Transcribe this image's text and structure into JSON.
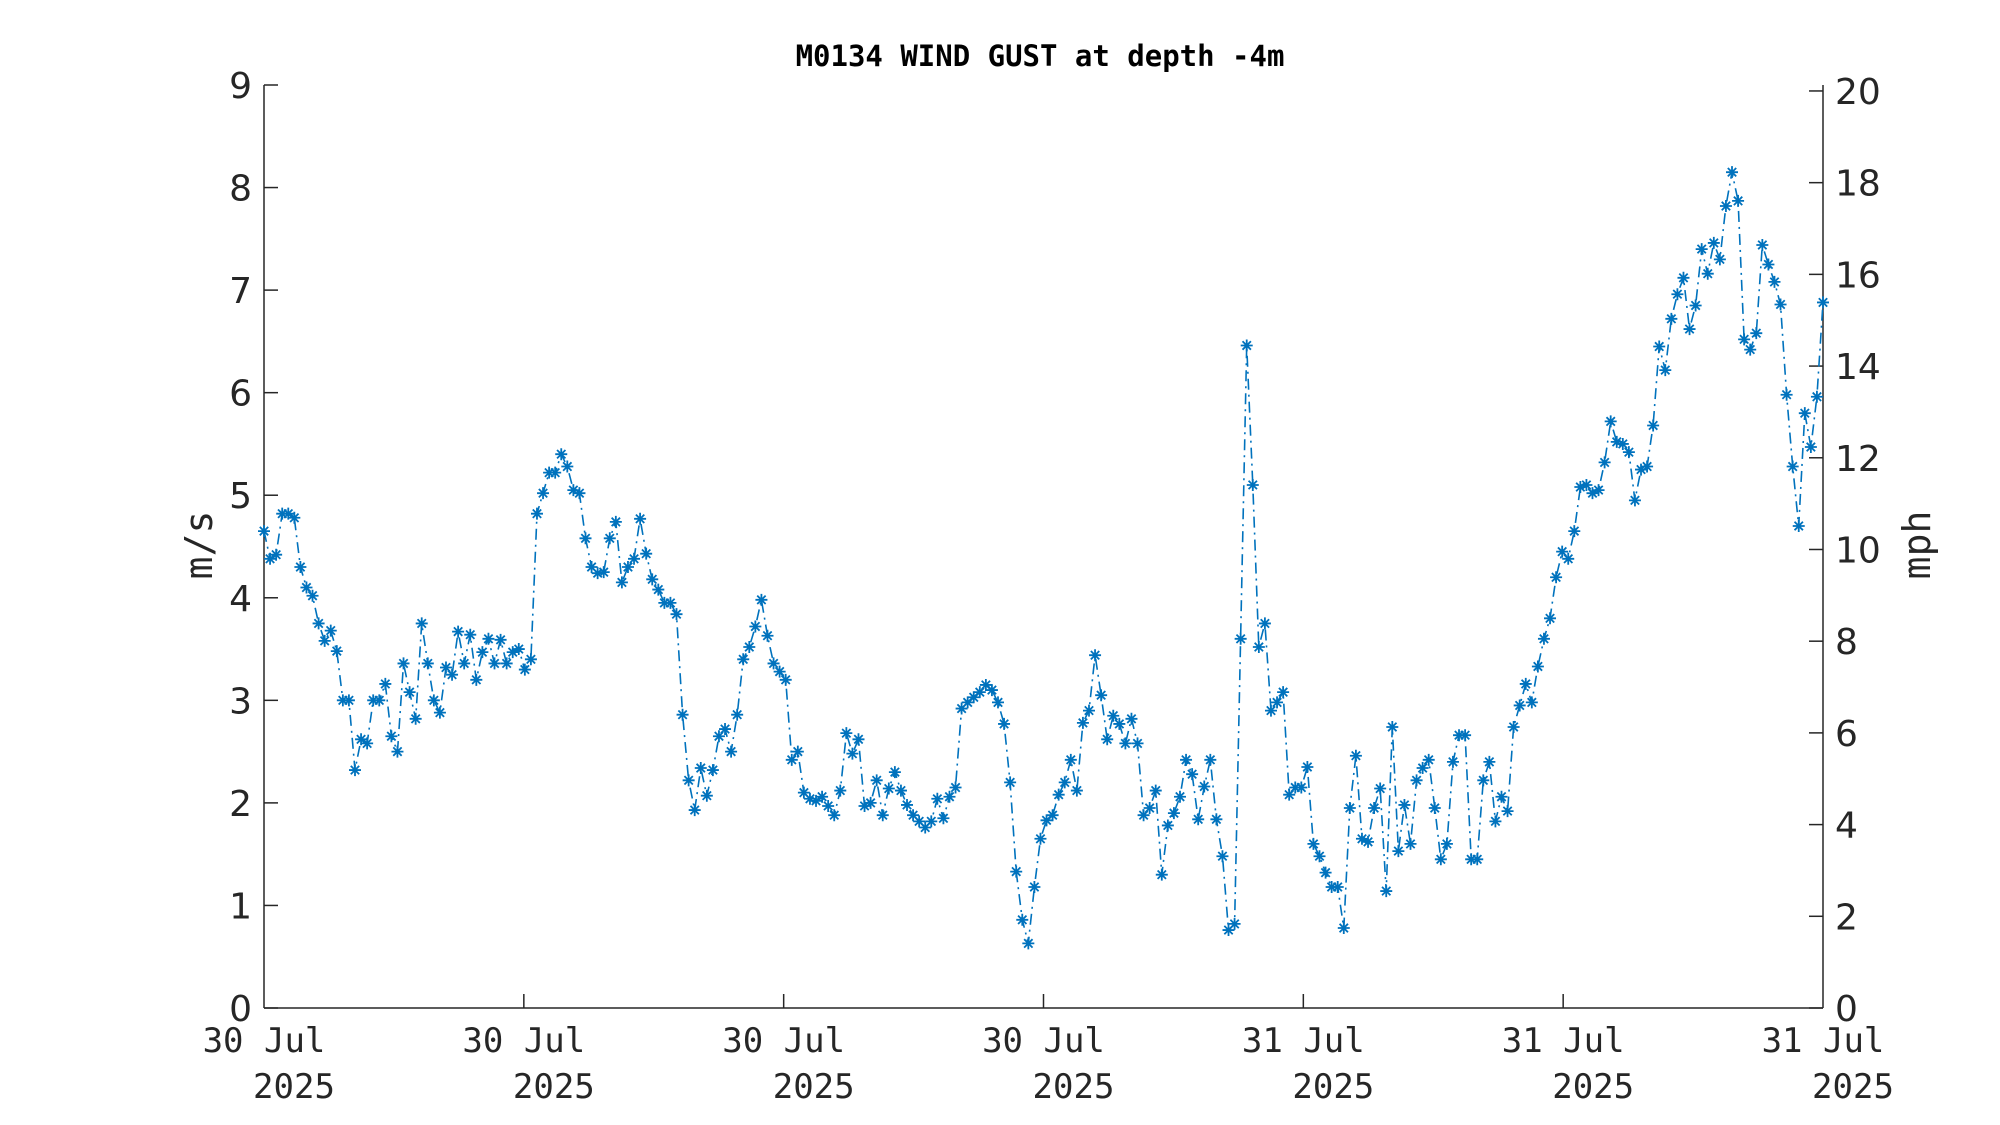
{
  "chart_data": {
    "type": "line",
    "title": "M0134 WIND GUST at depth -4m",
    "ylabel": "m/s",
    "ylabel_right": "mph",
    "ylim": [
      0,
      9
    ],
    "ylim_right": [
      0,
      20.13
    ],
    "yticks": [
      0,
      1,
      2,
      3,
      4,
      5,
      6,
      7,
      8,
      9
    ],
    "yticks_right": [
      0,
      2,
      4,
      6,
      8,
      10,
      12,
      14,
      16,
      18,
      20
    ],
    "xlim": [
      0,
      240
    ],
    "xticks": [
      {
        "pos": 0,
        "line1": "30 Jul",
        "line2": "2025"
      },
      {
        "pos": 40,
        "line1": "30 Jul",
        "line2": "2025"
      },
      {
        "pos": 80,
        "line1": "30 Jul",
        "line2": "2025"
      },
      {
        "pos": 120,
        "line1": "30 Jul",
        "line2": "2025"
      },
      {
        "pos": 160,
        "line1": "31 Jul",
        "line2": "2025"
      },
      {
        "pos": 200,
        "line1": "31 Jul",
        "line2": "2025"
      },
      {
        "pos": 240,
        "line1": "31 Jul",
        "line2": "2025"
      }
    ],
    "grid": false,
    "series": [
      {
        "color": "#0072bd",
        "line_style": "dash-dot",
        "marker": "asterisk",
        "values": [
          4.65,
          4.38,
          4.42,
          4.82,
          4.82,
          4.78,
          4.3,
          4.1,
          4.02,
          3.75,
          3.58,
          3.68,
          3.48,
          3.0,
          3.0,
          2.32,
          2.62,
          2.58,
          3.0,
          3.0,
          3.16,
          2.65,
          2.5,
          3.36,
          3.08,
          2.82,
          3.75,
          3.36,
          3.0,
          2.88,
          3.32,
          3.25,
          3.67,
          3.36,
          3.64,
          3.2,
          3.47,
          3.6,
          3.36,
          3.59,
          3.36,
          3.47,
          3.5,
          3.3,
          3.4,
          4.82,
          5.02,
          5.22,
          5.22,
          5.4,
          5.28,
          5.05,
          5.02,
          4.58,
          4.3,
          4.24,
          4.25,
          4.58,
          4.74,
          4.15,
          4.3,
          4.38,
          4.77,
          4.43,
          4.18,
          4.08,
          3.95,
          3.95,
          3.84,
          2.86,
          2.22,
          1.93,
          2.34,
          2.07,
          2.32,
          2.65,
          2.72,
          2.5,
          2.86,
          3.4,
          3.52,
          3.72,
          3.98,
          3.63,
          3.36,
          3.28,
          3.2,
          2.42,
          2.5,
          2.1,
          2.04,
          2.02,
          2.06,
          1.97,
          1.88,
          2.12,
          2.68,
          2.48,
          2.62,
          1.97,
          2.0,
          2.22,
          1.88,
          2.14,
          2.3,
          2.12,
          1.98,
          1.88,
          1.82,
          1.76,
          1.82,
          2.04,
          1.85,
          2.06,
          2.15,
          2.92,
          2.98,
          3.03,
          3.08,
          3.15,
          3.1,
          2.98,
          2.77,
          2.2,
          1.33,
          0.86,
          0.63,
          1.18,
          1.65,
          1.83,
          1.88,
          2.08,
          2.2,
          2.42,
          2.12,
          2.78,
          2.9,
          3.44,
          3.05,
          2.62,
          2.85,
          2.77,
          2.58,
          2.82,
          2.58,
          1.88,
          1.95,
          2.12,
          1.3,
          1.78,
          1.9,
          2.06,
          2.42,
          2.28,
          1.84,
          2.16,
          2.42,
          1.84,
          1.48,
          0.76,
          0.82,
          3.6,
          6.46,
          5.1,
          3.52,
          3.75,
          2.9,
          2.98,
          3.08,
          2.08,
          2.15,
          2.15,
          2.35,
          1.6,
          1.48,
          1.32,
          1.18,
          1.18,
          0.78,
          1.95,
          2.46,
          1.65,
          1.62,
          1.95,
          2.14,
          1.14,
          2.74,
          1.53,
          1.98,
          1.6,
          2.22,
          2.34,
          2.42,
          1.95,
          1.45,
          1.6,
          2.4,
          2.66,
          2.66,
          1.45,
          1.45,
          2.22,
          2.4,
          1.82,
          2.06,
          1.92,
          2.74,
          2.95,
          3.16,
          2.98,
          3.33,
          3.6,
          3.8,
          4.2,
          4.45,
          4.38,
          4.65,
          5.08,
          5.1,
          5.02,
          5.05,
          5.32,
          5.72,
          5.52,
          5.5,
          5.42,
          4.95,
          5.25,
          5.28,
          5.68,
          6.45,
          6.22,
          6.72,
          6.96,
          7.12,
          6.62,
          6.85,
          7.4,
          7.16,
          7.46,
          7.3,
          7.82,
          8.15,
          7.87,
          6.52,
          6.42,
          6.58,
          7.44,
          7.25,
          7.08,
          6.86,
          5.98,
          5.28,
          4.7,
          5.8,
          5.47,
          5.96,
          6.88
        ]
      }
    ]
  }
}
